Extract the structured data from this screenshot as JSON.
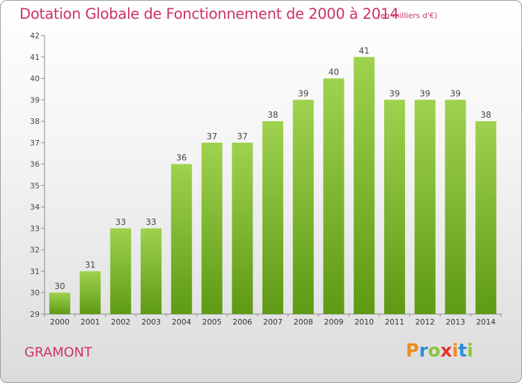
{
  "header": {
    "title": "Dotation Globale de Fonctionnement de 2000 à 2014",
    "unit_note": "(en milliers d'€)"
  },
  "footer": {
    "commune": "GRAMONT",
    "logo": "Proxiti"
  },
  "colors": {
    "title": "#cc3366",
    "bar_light": "#9fd24e",
    "bar_dark": "#5e9a14",
    "axis": "#888888",
    "logo_letters": [
      "#f08c1e",
      "#2a8fd6",
      "#8bc43c",
      "#e8332a",
      "#f08c1e",
      "#2a8fd6",
      "#8bc43c"
    ]
  },
  "chart_data": {
    "type": "bar",
    "title": "Dotation Globale de Fonctionnement de 2000 à 2014",
    "subtitle": "(en milliers d'€)",
    "categories": [
      "2000",
      "2001",
      "2002",
      "2003",
      "2004",
      "2005",
      "2006",
      "2007",
      "2008",
      "2009",
      "2010",
      "2011",
      "2012",
      "2013",
      "2014"
    ],
    "values": [
      30,
      31,
      33,
      33,
      36,
      37,
      37,
      38,
      39,
      40,
      41,
      39,
      39,
      39,
      38
    ],
    "ylim": [
      29,
      42
    ],
    "yticks": [
      29,
      30,
      31,
      32,
      33,
      34,
      35,
      36,
      37,
      38,
      39,
      40,
      41,
      42
    ],
    "grid": false,
    "data_labels": true
  }
}
